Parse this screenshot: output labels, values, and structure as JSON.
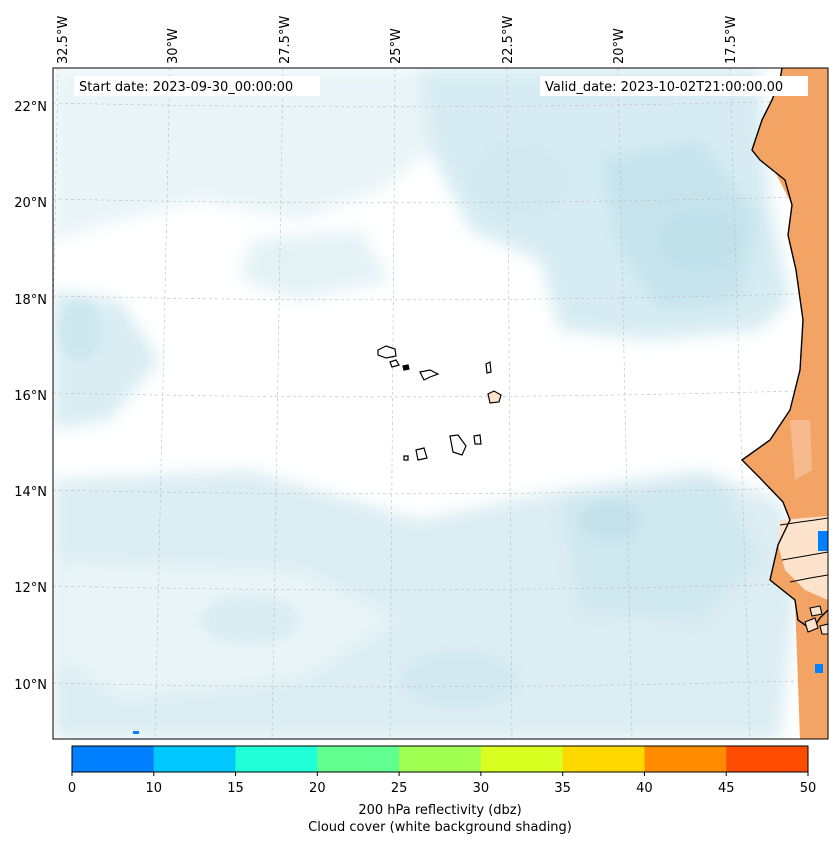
{
  "header": {
    "start_date": "Start date: 2023-09-30_00:00:00",
    "valid_date": "Valid_date: 2023-10-02T21:00:00.00"
  },
  "longitude_labels": [
    "32.5°W",
    "30°W",
    "27.5°W",
    "25°W",
    "22.5°W",
    "20°W",
    "17.5°W"
  ],
  "latitude_labels": [
    "22°N",
    "20°N",
    "18°N",
    "16°N",
    "14°N",
    "12°N",
    "10°N"
  ],
  "colorbar": {
    "ticks": [
      "0",
      "10",
      "15",
      "20",
      "25",
      "30",
      "35",
      "40",
      "45",
      "50"
    ],
    "colors": [
      "#0080ff",
      "#00c8ff",
      "#20ffd8",
      "#60ff90",
      "#a0ff50",
      "#d8ff20",
      "#ffd800",
      "#ff8c00",
      "#ff4c00"
    ],
    "label_line1": "200 hPa reflectivity (dbz)",
    "label_line2": "Cloud cover (white background shading)"
  },
  "colors": {
    "cloud_light": "#e4f2f6",
    "cloud_mid": "#cce6ef",
    "land_orange": "#f3a464",
    "land_light": "#fde2cc",
    "grid": "#bbbbbb",
    "coast": "#000000"
  }
}
